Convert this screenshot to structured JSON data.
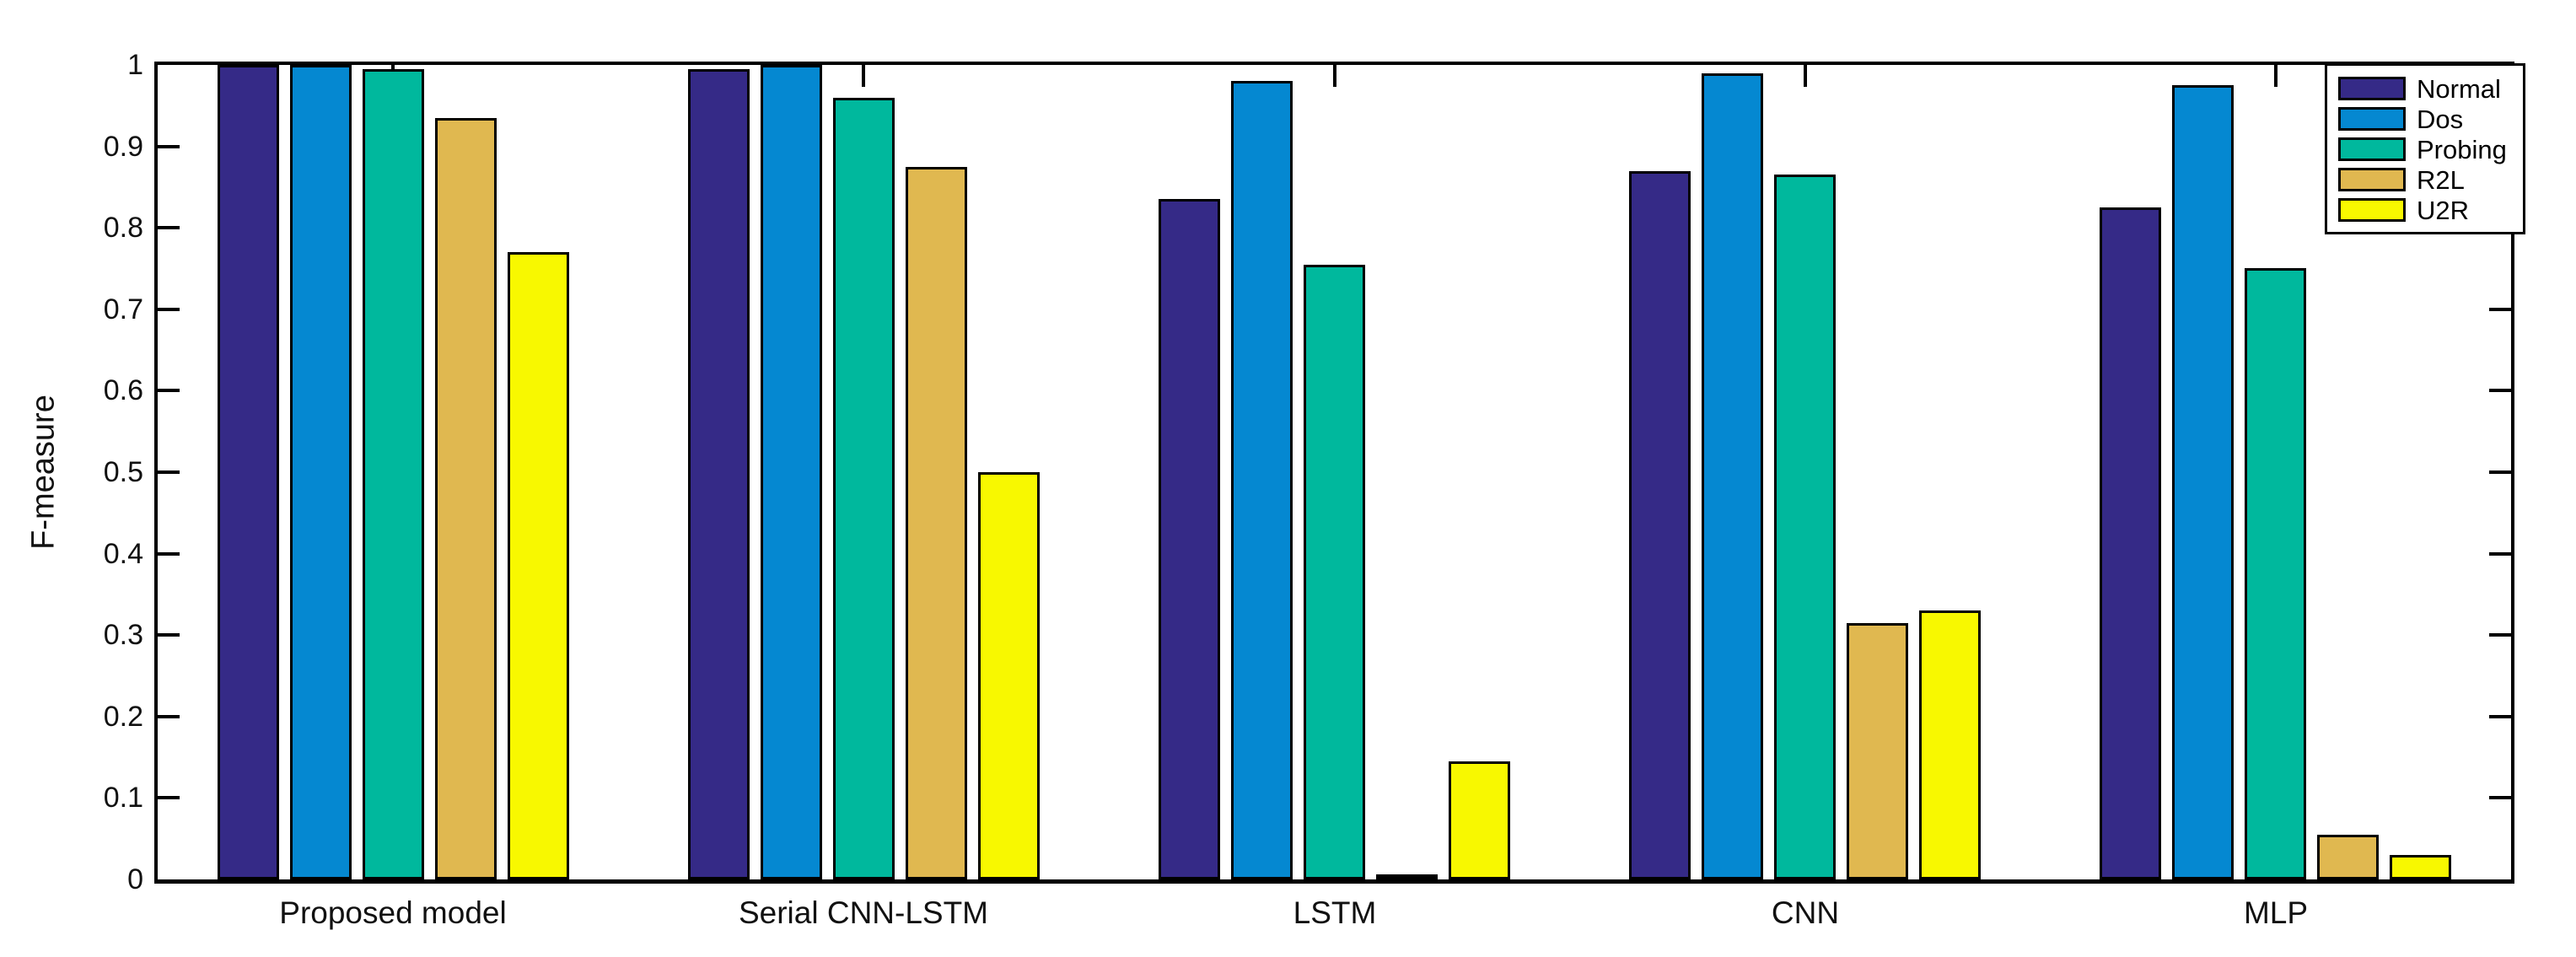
{
  "chart_data": {
    "type": "bar",
    "title": "",
    "xlabel": "",
    "ylabel": "F-measure",
    "ylim": [
      0,
      1
    ],
    "yticks": [
      0,
      0.1,
      0.2,
      0.3,
      0.4,
      0.5,
      0.6,
      0.7,
      0.8,
      0.9,
      1
    ],
    "ytick_labels": [
      "0",
      "0.1",
      "0.2",
      "0.3",
      "0.4",
      "0.5",
      "0.6",
      "0.7",
      "0.8",
      "0.9",
      "1"
    ],
    "grid": false,
    "legend_position": "top-right-inside",
    "background": "#ffffff",
    "axis_color": "#000000",
    "bar_edge_color": "#000000",
    "categories": [
      "Proposed model",
      "Serial CNN-LSTM",
      "LSTM",
      "CNN",
      "MLP"
    ],
    "series": [
      {
        "name": "Normal",
        "color": "#352a87",
        "values": [
          1.0,
          0.995,
          0.835,
          0.87,
          0.825
        ]
      },
      {
        "name": "Dos",
        "color": "#0588d1",
        "values": [
          1.0,
          1.0,
          0.98,
          0.99,
          0.975
        ]
      },
      {
        "name": "Probing",
        "color": "#00b89d",
        "values": [
          0.995,
          0.96,
          0.755,
          0.865,
          0.75
        ]
      },
      {
        "name": "R2L",
        "color": "#e0b850",
        "values": [
          0.935,
          0.875,
          0.002,
          0.315,
          0.055
        ]
      },
      {
        "name": "U2R",
        "color": "#f8f800",
        "values": [
          0.77,
          0.5,
          0.145,
          0.33,
          0.03
        ]
      }
    ]
  }
}
